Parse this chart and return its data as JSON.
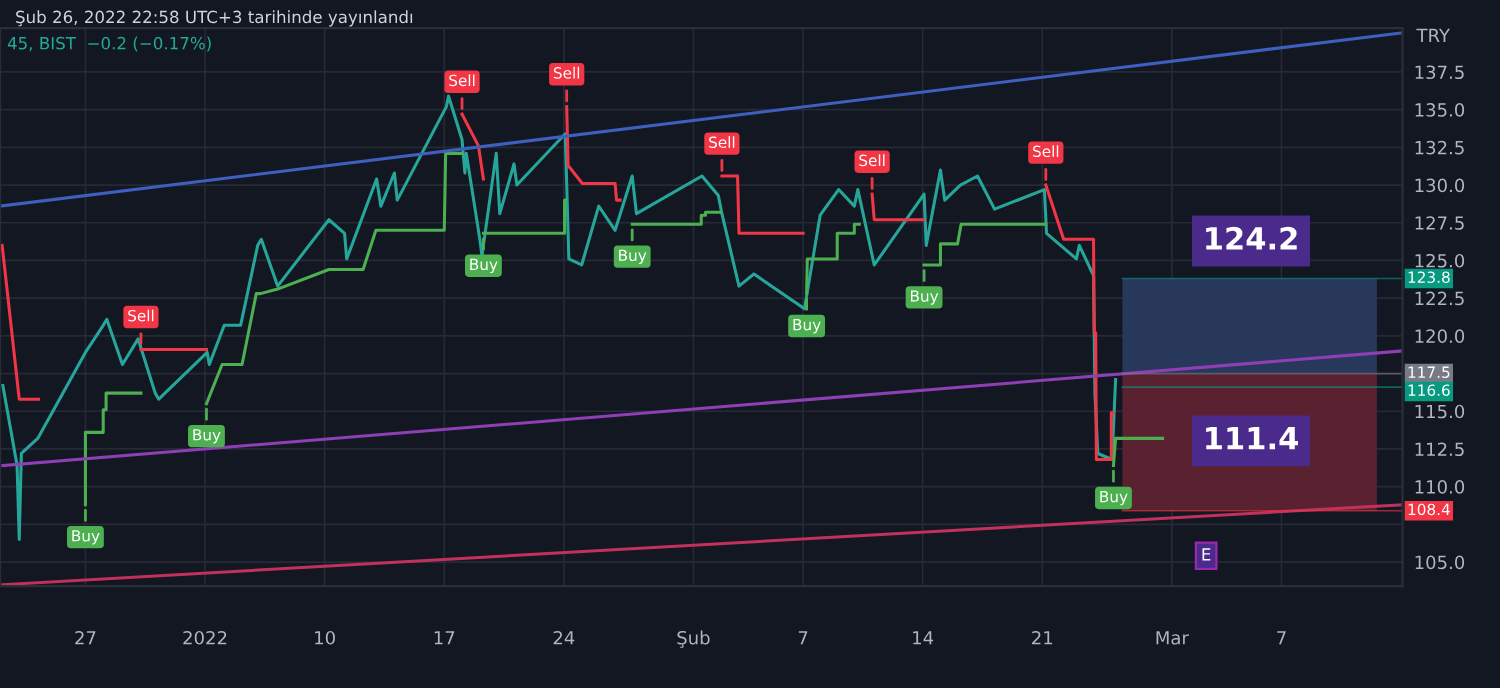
{
  "chart_data": {
    "type": "line",
    "title": "Şub 26, 2022 22:58 UTC+3 tarihinde yayınlandı",
    "subtitle": "45, BIST  −0.2 (−0.17%)",
    "ylabel": "TRY",
    "xlim": [
      "2021-12-22T10:00",
      "2022-03-14T12:00"
    ],
    "ylim": [
      103.4,
      140.4
    ],
    "xticks": [
      {
        "value": "2021-12-27T10:00",
        "label": "27"
      },
      {
        "value": "2022-01-03T10:00",
        "label": "2022"
      },
      {
        "value": "2022-01-10T10:00",
        "label": "10"
      },
      {
        "value": "2022-01-17T10:00",
        "label": "17"
      },
      {
        "value": "2022-01-24T10:00",
        "label": "24"
      },
      {
        "value": "2022-02",
        "label": "Şub"
      },
      {
        "value": "2022-02-07T10:00",
        "label": "7"
      },
      {
        "value": "2022-02-14T10:00",
        "label": "14"
      },
      {
        "value": "2022-02-21T10:00",
        "label": "21"
      },
      {
        "value": "2022-03",
        "label": "Mar"
      },
      {
        "value": "2022-03-07T10:00",
        "label": "7"
      }
    ],
    "yticks": [
      {
        "value": 105,
        "label": "105.0"
      },
      {
        "value": 107.5,
        "label": null
      },
      {
        "value": 110,
        "label": "110.0"
      },
      {
        "value": 112.5,
        "label": "112.5"
      },
      {
        "value": 115,
        "label": "115.0"
      },
      {
        "value": 117.5,
        "label": null
      },
      {
        "value": 120,
        "label": "120.0"
      },
      {
        "value": 122.5,
        "label": "122.5"
      },
      {
        "value": 125,
        "label": "125.0"
      },
      {
        "value": 127.5,
        "label": "127.5"
      },
      {
        "value": 130,
        "label": "130.0"
      },
      {
        "value": 132.5,
        "label": "132.5"
      },
      {
        "value": 135,
        "label": "135.0"
      },
      {
        "value": 137.5,
        "label": "137.5"
      }
    ],
    "grid": true,
    "series": [
      {
        "color": "#26a69a",
        "x": [
          "2021-12-22T14:00",
          "2021-12-23T10:00",
          "2021-12-23T13:00",
          "2021-12-23T16:00",
          "2021-12-24T15:00",
          "2021-12-27T10:00",
          "2021-12-28T11:00",
          "2021-12-28T16:00",
          "2021-12-29T14:00",
          "2021-12-30T12:00",
          "2021-12-31T12:00",
          "2021-12-31T17:00",
          "2022-01-03T13:00",
          "2022-01-03T16:00",
          "2022-01-04T13:00",
          "2022-01-05T12:00",
          "2022-01-06T12:00",
          "2022-01-06T17:00",
          "2022-01-07T16:00",
          "2022-01-10T16:00",
          "2022-01-11T14:00",
          "2022-01-11T17:00",
          "2022-01-13T11:00",
          "2022-01-13T17:00",
          "2022-01-14T12:00",
          "2022-01-14T16:00",
          "2022-01-17T13:00",
          "2022-01-17T16:00",
          "2022-01-18T11:00",
          "2022-01-18T15:00",
          "2022-01-18T17:00",
          "2022-01-19T12:00",
          "2022-01-19T15:00",
          "2022-01-20T11:00",
          "2022-01-20T16:00",
          "2022-01-21T12:00",
          "2022-01-21T16:00",
          "2022-01-24T12:00",
          "2022-01-24T17:00",
          "2022-01-25T11:00",
          "2022-01-26T11:00",
          "2022-01-27T10:00",
          "2022-01-28T10:00",
          "2022-01-28T16:00",
          "2022-02-01T12:00",
          "2022-02-02T11:00",
          "2022-02-02T16:00",
          "2022-02-03T16:00",
          "2022-02-04T13:00",
          "2022-02-07T12:00",
          "2022-02-08T10:00",
          "2022-02-09T12:00",
          "2022-02-10T10:00",
          "2022-02-10T15:00",
          "2022-02-11T14:00",
          "2022-02-14T12:00",
          "2022-02-14T15:00",
          "2022-02-15T11:00",
          "2022-02-15T17:00",
          "2022-02-16T15:00",
          "2022-02-17T15:00",
          "2022-02-18T15:00",
          "2022-02-21T13:00",
          "2022-02-21T16:00",
          "2022-02-23T10:00",
          "2022-02-23T14:00",
          "2022-02-24T10:00",
          "2022-02-24T12:00",
          "2022-02-24T16:00",
          "2022-02-25T12:00",
          "2022-02-25T17:00"
        ],
        "values": [
          116.7,
          111.4,
          106.5,
          112.2,
          113.2,
          118.9,
          120.7,
          121.1,
          118.1,
          119.8,
          116.2,
          115.8,
          118.9,
          118.1,
          120.7,
          120.7,
          126.0,
          126.4,
          123.3,
          127.7,
          126.8,
          125.1,
          130.4,
          128.6,
          130.8,
          129.0,
          135.2,
          135.9,
          133.0,
          130.8,
          132.1,
          126.4,
          125.3,
          132.1,
          128.1,
          131.4,
          130.0,
          133.4,
          125.1,
          124.7,
          128.6,
          127.0,
          130.6,
          128.1,
          130.6,
          129.3,
          128.1,
          123.3,
          124.1,
          121.8,
          128.0,
          129.7,
          128.6,
          129.7,
          124.7,
          129.4,
          126.0,
          131.0,
          129.0,
          130.0,
          130.6,
          128.4,
          129.7,
          126.8,
          125.1,
          126.0,
          124.0,
          116.2,
          112.2,
          111.8,
          117.1
        ]
      },
      {
        "color": "#f23645",
        "x": [
          "2021-12-22T13:00",
          "2021-12-23T13:00",
          "2021-12-24T16:00",
          null,
          "2021-12-30T16:00",
          "2022-01-03T12:00",
          null,
          "2022-01-18T11:00",
          "2022-01-19T10:00",
          "2022-01-19T17:00",
          null,
          "2022-01-24T14:00",
          "2022-01-24T16:00",
          "2022-01-25T12:00",
          "2022-01-27T10:00",
          "2022-01-27T12:00",
          "2022-01-27T17:00",
          null,
          "2022-02-02T16:00",
          "2022-02-03T14:00",
          "2022-02-03T16:00",
          "2022-02-07T10:00",
          null,
          "2022-02-11T11:00",
          "2022-02-11T14:00",
          "2022-02-14T11:00",
          null,
          "2022-02-21T15:00",
          "2022-02-22T16:00",
          "2022-02-24T10:00",
          "2022-02-24T11:00",
          "2022-02-24T13:00",
          "2022-02-24T14:00",
          "2022-02-25T11:00",
          "2022-02-25T11:00",
          "2022-02-25T14:00"
        ],
        "values": [
          126.0,
          115.8,
          115.8,
          null,
          119.1,
          119.1,
          null,
          134.7,
          132.6,
          130.4,
          null,
          135.2,
          131.3,
          130.1,
          130.1,
          129.0,
          129.0,
          null,
          130.6,
          130.6,
          126.8,
          126.8,
          null,
          129.4,
          127.7,
          127.7,
          null,
          130.0,
          126.4,
          126.4,
          120.2,
          120.2,
          111.8,
          111.8,
          114.9,
          114.9
        ]
      },
      {
        "color": "#4caf50",
        "x": [
          "2021-12-27T10:00",
          "2021-12-27T10:00",
          "2021-12-28T11:00",
          "2021-12-28T11:00",
          "2021-12-28T15:00",
          "2021-12-28T15:00",
          "2021-12-30T16:00",
          null,
          "2022-01-03T12:00",
          "2022-01-04T10:00",
          "2022-01-05T14:00",
          "2022-01-06T10:00",
          "2022-01-06T16:00",
          "2022-01-07T16:00",
          "2022-01-10T16:00",
          "2022-01-12T16:00",
          "2022-01-13T10:00",
          "2022-01-17T10:00",
          "2022-01-17T12:00",
          "2022-01-18T11:00",
          null,
          "2022-01-19T17:00",
          "2022-01-24T11:00",
          "2022-01-24T11:00",
          "2022-01-24T12:00",
          null,
          "2022-01-28T10:00",
          "2022-02-01T11:00",
          "2022-02-01T11:00",
          "2022-02-01T17:00",
          "2022-02-01T17:00",
          "2022-02-02T14:00",
          null,
          "2022-02-07T15:00",
          "2022-02-07T16:00",
          "2022-02-09T10:00",
          "2022-02-09T10:00",
          "2022-02-10T10:00",
          "2022-02-10T10:00",
          "2022-02-10T17:00",
          null,
          "2022-02-14T12:00",
          "2022-02-15T11:00",
          "2022-02-15T11:00",
          "2022-02-16T11:00",
          "2022-02-16T16:00",
          "2022-02-21T15:00",
          null,
          "2022-02-25T14:00",
          "2022-02-25T17:00",
          "2022-02-28T11:00"
        ],
        "values": [
          108.8,
          113.6,
          113.6,
          115.1,
          115.1,
          116.2,
          116.2,
          null,
          115.5,
          118.1,
          118.1,
          122.8,
          122.8,
          123.1,
          124.4,
          124.4,
          127.0,
          127.0,
          132.1,
          132.1,
          null,
          126.8,
          126.8,
          129.0,
          129.0,
          null,
          127.4,
          127.4,
          128.0,
          128.0,
          128.2,
          128.2,
          null,
          122.8,
          125.1,
          125.1,
          126.8,
          126.8,
          127.4,
          127.4,
          null,
          124.7,
          124.7,
          126.1,
          126.1,
          127.4,
          127.4,
          null,
          111.4,
          113.2,
          113.2
        ]
      },
      {
        "color": "#3f5fc0",
        "x": [
          "2021-12-22T10:00",
          "2022-03-14T12:00"
        ],
        "values": [
          128.6,
          140.1
        ]
      },
      {
        "color": "#8e3fb5",
        "x": [
          "2021-12-22T14:00",
          "2022-03-14T12:00"
        ],
        "values": [
          111.4,
          119.0
        ]
      },
      {
        "color": "#c2305e",
        "x": [
          "2021-12-22T14:00",
          "2022-03-14T12:00"
        ],
        "values": [
          103.5,
          108.8
        ]
      }
    ],
    "annotations": [
      {
        "text": "Buy",
        "x": "2021-12-27T10:00",
        "y": 108.8
      },
      {
        "text": "Sell",
        "x": "2021-12-30T16:00",
        "y": 119.1
      },
      {
        "text": "Buy",
        "x": "2022-01-03T12:00",
        "y": 115.5
      },
      {
        "text": "Sell",
        "x": "2022-01-18T11:00",
        "y": 134.7
      },
      {
        "text": "Buy",
        "x": "2022-01-19T17:00",
        "y": 126.8
      },
      {
        "text": "Sell",
        "x": "2022-01-24T14:00",
        "y": 135.2
      },
      {
        "text": "Buy",
        "x": "2022-01-28T10:00",
        "y": 127.4
      },
      {
        "text": "Sell",
        "x": "2022-02-02T16:00",
        "y": 130.6
      },
      {
        "text": "Buy",
        "x": "2022-02-07T15:00",
        "y": 122.8
      },
      {
        "text": "Sell",
        "x": "2022-02-11T11:00",
        "y": 129.4
      },
      {
        "text": "Buy",
        "x": "2022-02-14T12:00",
        "y": 124.7
      },
      {
        "text": "Sell",
        "x": "2022-02-21T15:00",
        "y": 130.0
      },
      {
        "text": "Buy",
        "x": "2022-02-25T14:00",
        "y": 111.4
      },
      "E"
    ],
    "bands": [
      {
        "axis": "y",
        "from": 117.5,
        "to": 123.8,
        "label": "124.2",
        "color": "#27385a"
      },
      {
        "axis": "y",
        "from": 108.4,
        "to": 117.5,
        "label": "111.4",
        "color": "#5a2231"
      }
    ],
    "ref_lines": [
      {
        "axis": "y",
        "value": 123.8,
        "label": "123.8",
        "color": "#089981"
      },
      {
        "axis": "y",
        "value": 117.5,
        "label": "117.5",
        "color": "#787b86"
      },
      {
        "axis": "y",
        "value": 116.6,
        "label": "116.6",
        "color": "#089981"
      },
      {
        "axis": "y",
        "value": 108.4,
        "label": "108.4",
        "color": "#f23645"
      }
    ]
  }
}
